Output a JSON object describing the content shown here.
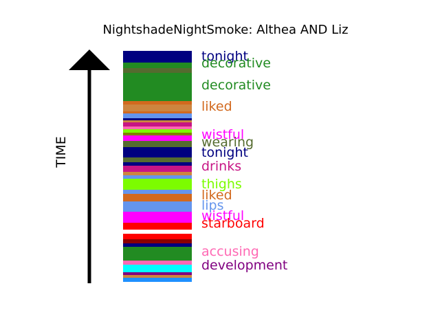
{
  "chart_data": {
    "type": "bar",
    "title": "NightshadeNightSmoke: Althea AND Liz",
    "ylabel": "TIME",
    "bands": [
      {
        "color": "#000080"
      },
      {
        "color": "#228B22"
      },
      {
        "color": "#556B2F"
      },
      {
        "color": "#228B22"
      },
      {
        "color": "#D2691E"
      },
      {
        "color": "#CD853F"
      },
      {
        "color": "#D2691E"
      },
      {
        "color": "#6495ED"
      },
      {
        "color": "#000080"
      },
      {
        "color": "#CD853F"
      },
      {
        "color": "#C71585"
      },
      {
        "color": "#FF69B4"
      },
      {
        "color": "#7CFC00"
      },
      {
        "color": "#808000"
      },
      {
        "color": "#FF00FF"
      },
      {
        "color": "#556B2F"
      },
      {
        "color": "#000080"
      },
      {
        "color": "#556B2F"
      },
      {
        "color": "#000080"
      },
      {
        "color": "#C71585"
      },
      {
        "color": "#CD853F"
      },
      {
        "color": "#6495ED"
      },
      {
        "color": "#7CFC00"
      },
      {
        "color": "#6495ED"
      },
      {
        "color": "#D2691E"
      },
      {
        "color": "#6495ED"
      },
      {
        "color": "#FF00FF"
      },
      {
        "color": "#FF0000"
      },
      {
        "color": "#FFFFFF"
      },
      {
        "color": "#FF0000"
      },
      {
        "color": "#8B0000"
      },
      {
        "color": "#000080"
      },
      {
        "color": "#228B22"
      },
      {
        "color": "#FF69B4"
      },
      {
        "color": "#00FFFF"
      },
      {
        "color": "#800080"
      },
      {
        "color": "#CD853F"
      },
      {
        "color": "#1E90FF"
      },
      {
        "color": "#FF4500"
      }
    ],
    "labels": [
      {
        "text": "tonight",
        "color": "#000080"
      },
      {
        "text": "decorative",
        "color": "#228B22"
      },
      {
        "text": "decorative",
        "color": "#228B22"
      },
      {
        "text": "liked",
        "color": "#D2691E"
      },
      {
        "text": "wistful",
        "color": "#FF00FF"
      },
      {
        "text": "wearing",
        "color": "#556B2F"
      },
      {
        "text": "tonight",
        "color": "#000080"
      },
      {
        "text": "drinks",
        "color": "#C71585"
      },
      {
        "text": "thighs",
        "color": "#7CFC00"
      },
      {
        "text": "liked",
        "color": "#D2691E"
      },
      {
        "text": "lips",
        "color": "#6495ED"
      },
      {
        "text": "wistful",
        "color": "#FF00FF"
      },
      {
        "text": "starboard",
        "color": "#FF0000"
      },
      {
        "text": "accusing",
        "color": "#FF69B4"
      },
      {
        "text": "development",
        "color": "#800080"
      }
    ]
  }
}
